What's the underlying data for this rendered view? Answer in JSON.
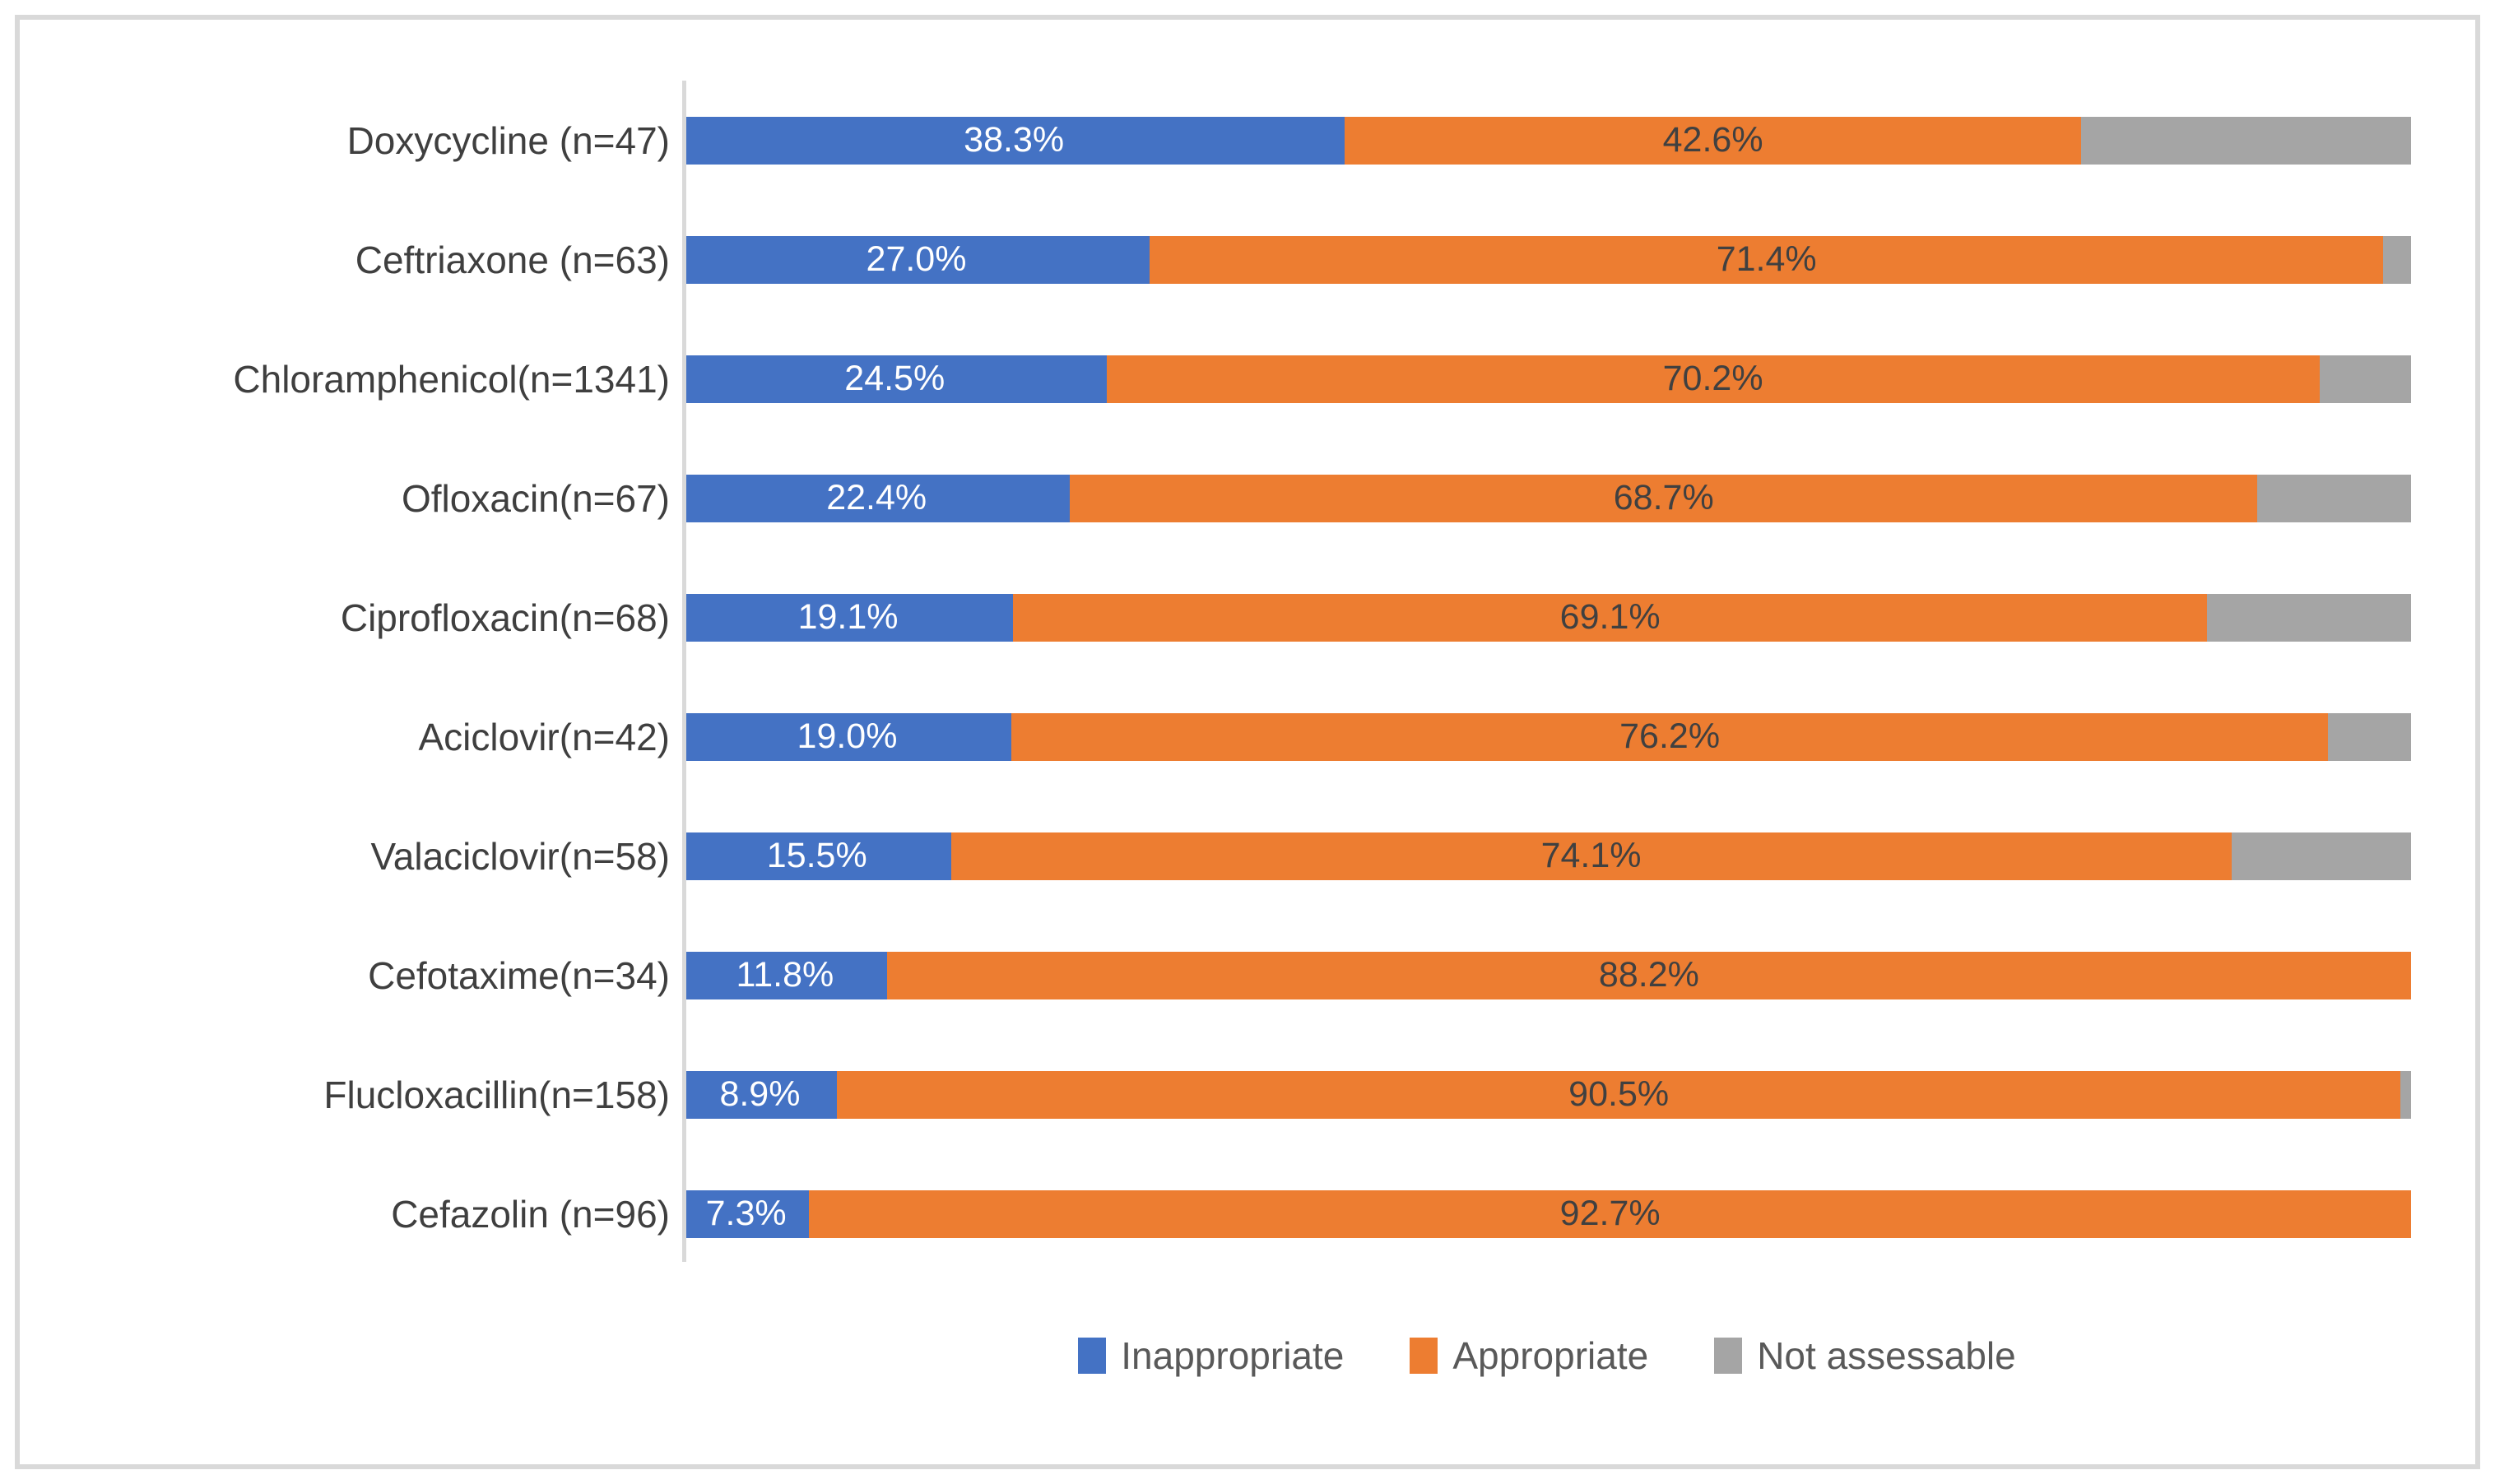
{
  "chart_data": {
    "type": "bar",
    "variant": "horizontal-100-percent-stacked",
    "title": "",
    "xlabel": "",
    "ylabel": "",
    "xlim": [
      0,
      100
    ],
    "grid": false,
    "legend_position": "bottom",
    "categories": [
      "Doxycycline (n=47)",
      "Ceftriaxone (n=63)",
      "Chloramphenicol(n=1341)",
      "Ofloxacin(n=67)",
      "Ciprofloxacin(n=68)",
      "Aciclovir(n=42)",
      "Valaciclovir(n=58)",
      "Cefotaxime(n=34)",
      "Flucloxacillin(n=158)",
      "Cefazolin (n=96)"
    ],
    "series": [
      {
        "name": "Inappropriate",
        "color": "#4472C4",
        "label_color": "#ffffff",
        "show_labels": true,
        "values": [
          38.3,
          27.0,
          24.5,
          22.4,
          19.1,
          19.0,
          15.5,
          11.8,
          8.9,
          7.3
        ]
      },
      {
        "name": "Appropriate",
        "color": "#ED7D31",
        "label_color": "#404040",
        "show_labels": true,
        "values": [
          42.6,
          71.4,
          70.2,
          68.7,
          69.1,
          76.2,
          74.1,
          88.2,
          90.5,
          92.7
        ]
      },
      {
        "name": "Not assessable",
        "color": "#A5A5A5",
        "label_color": null,
        "show_labels": false,
        "values": [
          19.1,
          1.6,
          5.3,
          8.9,
          11.8,
          4.8,
          10.4,
          0.0,
          0.6,
          0.0
        ]
      }
    ],
    "data_label_format": "one-decimal-percent"
  },
  "legend": {
    "items": [
      {
        "label": "Inappropriate",
        "color": "#4472C4"
      },
      {
        "label": "Appropriate",
        "color": "#ED7D31"
      },
      {
        "label": "Not assessable",
        "color": "#A5A5A5"
      }
    ]
  },
  "style_colors": {
    "axis_line": "#d9d9d9",
    "outer_border": "#d9d9d9",
    "category_text": "#3f3f3f",
    "legend_text": "#595959"
  }
}
